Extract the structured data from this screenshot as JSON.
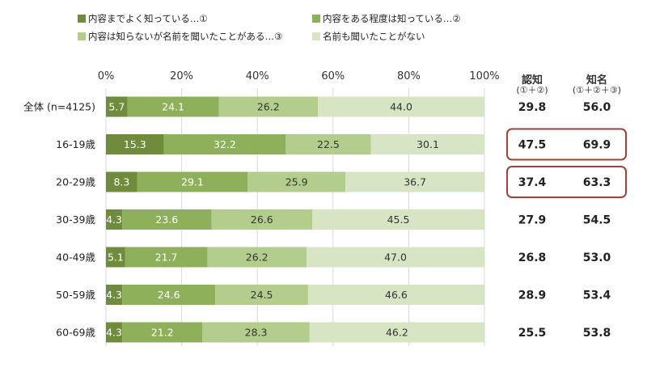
{
  "chart_data": {
    "type": "bar",
    "orientation": "horizontal",
    "stacked": true,
    "xlim": [
      0,
      100
    ],
    "x_ticks": [
      "0%",
      "20%",
      "40%",
      "60%",
      "80%",
      "100%"
    ],
    "categories": [
      "全体 (n=4125)",
      "16-19歳",
      "20-29歳",
      "30-39歳",
      "40-49歳",
      "50-59歳",
      "60-69歳"
    ],
    "series": [
      {
        "name": "内容までよく知っている…①",
        "color": "#6e8c3c",
        "values": [
          5.7,
          15.3,
          8.3,
          4.3,
          5.1,
          4.3,
          4.3
        ]
      },
      {
        "name": "内容をある程度は知っている…②",
        "color": "#8eb05a",
        "values": [
          24.1,
          32.2,
          29.1,
          23.6,
          21.7,
          24.6,
          21.2
        ]
      },
      {
        "name": "内容は知らないが名前を聞いたことがある…③",
        "color": "#b3cd8c",
        "values": [
          26.2,
          22.5,
          25.9,
          26.6,
          26.2,
          24.5,
          28.3
        ]
      },
      {
        "name": "名前も聞いたことがない",
        "color": "#d8e5c4",
        "values": [
          44.0,
          30.1,
          36.7,
          45.5,
          47.0,
          46.6,
          46.2
        ]
      }
    ],
    "summary_columns": [
      {
        "title": "認知",
        "subtitle": "(①＋②)",
        "values": [
          "29.8",
          "47.5",
          "37.4",
          "27.9",
          "26.8",
          "28.9",
          "25.5"
        ]
      },
      {
        "title": "知名",
        "subtitle": "(①＋②＋③)",
        "values": [
          "56.0",
          "69.9",
          "63.3",
          "54.5",
          "53.0",
          "53.4",
          "53.8"
        ]
      }
    ],
    "highlighted_rows": [
      1,
      2
    ],
    "highlight_color": "#a0413e",
    "grid": true,
    "legend_position": "top"
  }
}
